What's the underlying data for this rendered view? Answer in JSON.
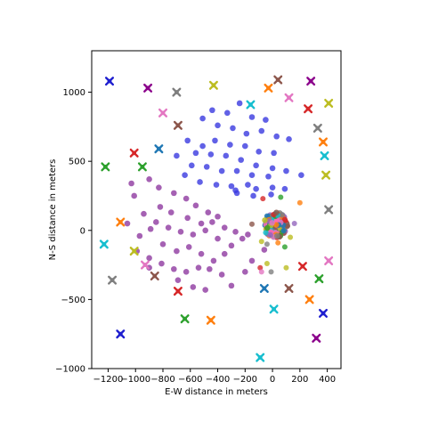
{
  "chart_data": {
    "type": "scatter",
    "title": "",
    "xlabel": "E-W distance in meters",
    "ylabel": "N-S distance in meters",
    "xlim": [
      -1320,
      500
    ],
    "ylim": [
      -1000,
      1300
    ],
    "xticks": [
      -1200,
      -1000,
      -800,
      -600,
      -400,
      -200,
      0,
      200,
      400
    ],
    "yticks": [
      -1000,
      -500,
      0,
      500,
      1000
    ],
    "xtick_labels": [
      "−1200",
      "−1000",
      "−800",
      "−600",
      "−400",
      "−200",
      "0",
      "200",
      "400"
    ],
    "ytick_labels": [
      "−1000",
      "−500",
      "0",
      "500",
      "1000"
    ],
    "grid": false,
    "series": [
      {
        "marker": "circle",
        "color": "#3a3ae0",
        "points": [
          [
            -440,
            870
          ],
          [
            -330,
            850
          ],
          [
            -240,
            920
          ],
          [
            -150,
            820
          ],
          [
            -50,
            800
          ],
          [
            -510,
            810
          ],
          [
            -400,
            760
          ],
          [
            -290,
            740
          ],
          [
            -190,
            700
          ],
          [
            -80,
            720
          ],
          [
            30,
            680
          ],
          [
            -620,
            650
          ],
          [
            -510,
            610
          ],
          [
            -420,
            650
          ],
          [
            -310,
            620
          ],
          [
            -200,
            610
          ],
          [
            -100,
            570
          ],
          [
            10,
            560
          ],
          [
            120,
            660
          ],
          [
            -560,
            560
          ],
          [
            -450,
            550
          ],
          [
            -340,
            540
          ],
          [
            -230,
            510
          ],
          [
            -120,
            470
          ],
          [
            0,
            450
          ],
          [
            100,
            430
          ],
          [
            210,
            400
          ],
          [
            -700,
            540
          ],
          [
            -590,
            470
          ],
          [
            -480,
            460
          ],
          [
            -370,
            430
          ],
          [
            -260,
            430
          ],
          [
            -150,
            400
          ],
          [
            -30,
            390
          ],
          [
            -640,
            400
          ],
          [
            -530,
            350
          ],
          [
            -410,
            330
          ],
          [
            -300,
            320
          ],
          [
            -180,
            330
          ],
          [
            -120,
            300
          ],
          [
            -270,
            290
          ],
          [
            0,
            310
          ],
          [
            -260,
            270
          ],
          [
            -140,
            250
          ],
          [
            -10,
            260
          ],
          [
            90,
            300
          ]
        ]
      },
      {
        "marker": "circle",
        "color": "#8e3aa0",
        "points": [
          [
            -1030,
            340
          ],
          [
            -1010,
            250
          ],
          [
            -900,
            370
          ],
          [
            -830,
            310
          ],
          [
            -720,
            270
          ],
          [
            -630,
            230
          ],
          [
            -560,
            180
          ],
          [
            -470,
            130
          ],
          [
            -400,
            100
          ],
          [
            -1060,
            50
          ],
          [
            -970,
            -40
          ],
          [
            -890,
            10
          ],
          [
            -800,
            -100
          ],
          [
            -700,
            -150
          ],
          [
            -610,
            -120
          ],
          [
            -520,
            -170
          ],
          [
            -430,
            -220
          ],
          [
            -350,
            -170
          ],
          [
            -940,
            120
          ],
          [
            -850,
            60
          ],
          [
            -760,
            20
          ],
          [
            -670,
            -10
          ],
          [
            -580,
            -30
          ],
          [
            -490,
            0
          ],
          [
            -400,
            -60
          ],
          [
            -300,
            -110
          ],
          [
            -220,
            -60
          ],
          [
            -990,
            -150
          ],
          [
            -900,
            -200
          ],
          [
            -810,
            -240
          ],
          [
            -720,
            -280
          ],
          [
            -630,
            -300
          ],
          [
            -540,
            -270
          ],
          [
            -460,
            -280
          ],
          [
            -370,
            -320
          ],
          [
            -900,
            -270
          ],
          [
            -690,
            -360
          ],
          [
            -580,
            -410
          ],
          [
            -490,
            -430
          ],
          [
            -300,
            -400
          ],
          [
            -200,
            -300
          ],
          [
            -150,
            -220
          ],
          [
            -60,
            -140
          ],
          [
            -820,
            170
          ],
          [
            -740,
            130
          ],
          [
            -620,
            90
          ],
          [
            -520,
            50
          ],
          [
            -440,
            60
          ],
          [
            -350,
            20
          ],
          [
            -270,
            -10
          ],
          [
            -180,
            -30
          ]
        ]
      }
    ],
    "cluster": {
      "center": [
        20,
        40
      ],
      "radius": 85,
      "count": 130,
      "colors": [
        "#d62728",
        "#2ca02c",
        "#1f77b4",
        "#9467bd",
        "#ff7f0e",
        "#e377c2",
        "#8c564b",
        "#7f7f7f",
        "#bcbd22",
        "#17becf",
        "#ff69b4"
      ]
    },
    "scatter_extras": [
      [
        -150,
        45,
        "#8c564b"
      ],
      [
        -80,
        -80,
        "#bcbd22"
      ],
      [
        -40,
        -100,
        "#7f7f7f"
      ],
      [
        40,
        -90,
        "#ff7f0e"
      ],
      [
        90,
        -120,
        "#2ca02c"
      ],
      [
        -90,
        -270,
        "#d62728"
      ],
      [
        -40,
        -240,
        "#bcbd22"
      ],
      [
        100,
        -270,
        "#bcbd22"
      ],
      [
        -80,
        -300,
        "#e377c2"
      ],
      [
        -10,
        -300,
        "#7f7f7f"
      ],
      [
        -70,
        230,
        "#d62728"
      ],
      [
        60,
        240,
        "#2ca02c"
      ],
      [
        200,
        200,
        "#ff7f0e"
      ],
      [
        130,
        -50,
        "#bcbd22"
      ],
      [
        160,
        50,
        "#9467bd"
      ]
    ],
    "crosses": [
      [
        -1190,
        1080,
        "#1f1fcf"
      ],
      [
        -910,
        1030,
        "#8b008b"
      ],
      [
        -700,
        1000,
        "#7f7f7f"
      ],
      [
        -430,
        1050,
        "#bcbd22"
      ],
      [
        40,
        1090,
        "#8c564b"
      ],
      [
        280,
        1080,
        "#8b008b"
      ],
      [
        -800,
        850,
        "#e377c2"
      ],
      [
        -690,
        760,
        "#8c564b"
      ],
      [
        -160,
        910,
        "#17becf"
      ],
      [
        -30,
        1030,
        "#ff7f0e"
      ],
      [
        120,
        960,
        "#e377c2"
      ],
      [
        260,
        880,
        "#d62728"
      ],
      [
        410,
        920,
        "#bcbd22"
      ],
      [
        330,
        740,
        "#7f7f7f"
      ],
      [
        370,
        640,
        "#ff7f0e"
      ],
      [
        -1010,
        560,
        "#d62728"
      ],
      [
        -830,
        590,
        "#1f77b4"
      ],
      [
        380,
        540,
        "#17becf"
      ],
      [
        -1220,
        460,
        "#2ca02c"
      ],
      [
        -950,
        460,
        "#2ca02c"
      ],
      [
        390,
        400,
        "#bcbd22"
      ],
      [
        -1110,
        60,
        "#ff7f0e"
      ],
      [
        410,
        150,
        "#7f7f7f"
      ],
      [
        -1230,
        -100,
        "#17becf"
      ],
      [
        -1010,
        -150,
        "#bcbd22"
      ],
      [
        -930,
        -250,
        "#e377c2"
      ],
      [
        410,
        -220,
        "#e377c2"
      ],
      [
        -1170,
        -360,
        "#7f7f7f"
      ],
      [
        -860,
        -330,
        "#8c564b"
      ],
      [
        220,
        -260,
        "#d62728"
      ],
      [
        -690,
        -440,
        "#d62728"
      ],
      [
        -60,
        -420,
        "#1f77b4"
      ],
      [
        120,
        -420,
        "#8c564b"
      ],
      [
        340,
        -350,
        "#2ca02c"
      ],
      [
        270,
        -500,
        "#ff7f0e"
      ],
      [
        -640,
        -640,
        "#2ca02c"
      ],
      [
        -450,
        -650,
        "#ff7f0e"
      ],
      [
        10,
        -570,
        "#17becf"
      ],
      [
        370,
        -600,
        "#1f1fcf"
      ],
      [
        -1110,
        -750,
        "#1f1fcf"
      ],
      [
        320,
        -780,
        "#8b008b"
      ],
      [
        -90,
        -920,
        "#17becf"
      ]
    ]
  }
}
